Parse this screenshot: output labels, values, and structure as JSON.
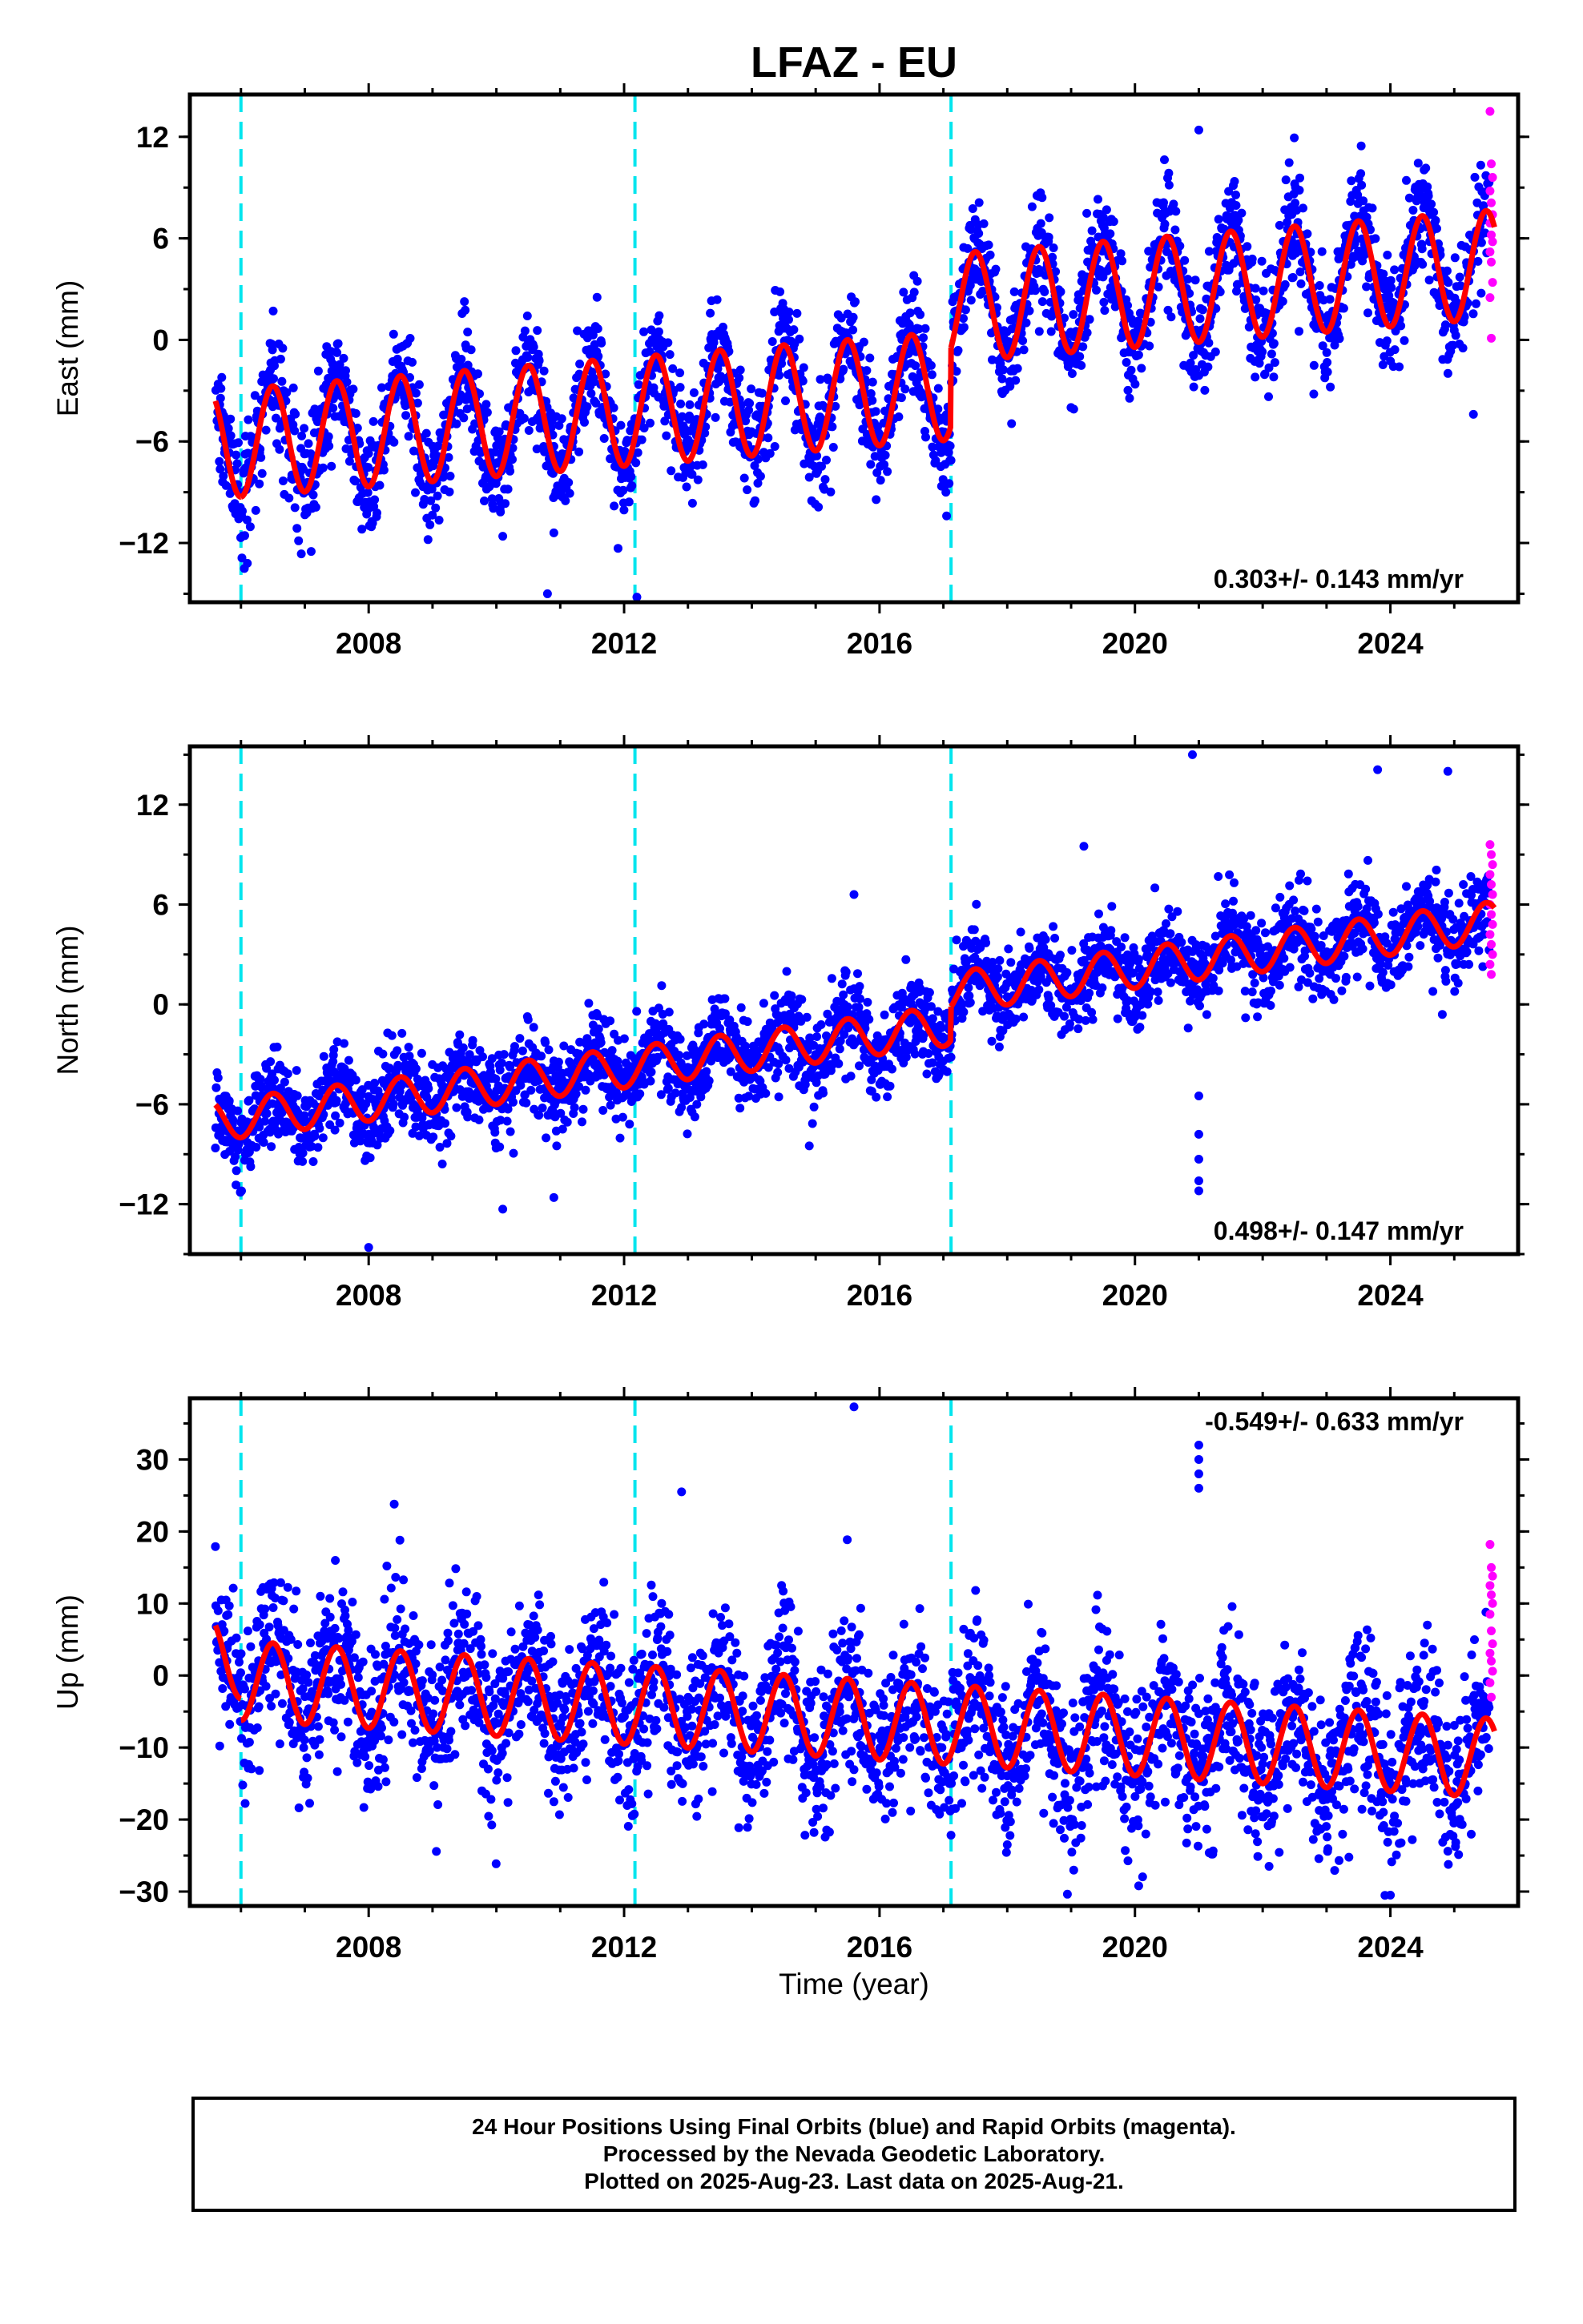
{
  "title": "LFAZ - EU",
  "xlabel": "Time (year)",
  "footer": {
    "line1": "24 Hour Positions Using Final Orbits (blue) and Rapid Orbits (magenta).",
    "line2": "Processed by the Nevada Geodetic Laboratory.",
    "line3": "Plotted on 2025-Aug-23. Last data on 2025-Aug-21."
  },
  "colors": {
    "final": "#0000ff",
    "rapid": "#ff00ff",
    "model": "#ff0000",
    "steps": "#00e5ee"
  },
  "chart_data": [
    {
      "type": "scatter",
      "component": "East",
      "ylabel": "East (mm)",
      "xlim": [
        2005.2,
        2026.0
      ],
      "ylim": [
        -15.5,
        14.5
      ],
      "xticks": [
        2008,
        2012,
        2016,
        2020,
        2024
      ],
      "yticks": [
        -12,
        -6,
        0,
        6,
        12
      ],
      "grid": false,
      "step_epochs": [
        2006.0,
        2012.17,
        2017.12
      ],
      "rate_label": "0.303+/- 0.143 mm/yr",
      "rate_label_position": "bottom-right",
      "model": {
        "start_year": 2005.6,
        "end_year": 2025.63,
        "rate": 0.303,
        "offset_at_start": -6.2,
        "annual_amplitude": 3.2,
        "steps": [
          {
            "year": 2006.0,
            "offset": 0.0
          },
          {
            "year": 2012.17,
            "offset": 0.0
          },
          {
            "year": 2017.12,
            "offset": 4.6
          }
        ]
      },
      "scatter_sigma": 1.6,
      "outliers": [
        [
          2021.0,
          12.4
        ],
        [
          2010.8,
          -15.0
        ],
        [
          2012.2,
          -15.2
        ],
        [
          2006.1,
          -13.2
        ],
        [
          2007.1,
          -12.5
        ],
        [
          2010.9,
          -11.4
        ],
        [
          2025.3,
          -4.4
        ],
        [
          2022.8,
          -3.2
        ],
        [
          2017.05,
          -10.4
        ],
        [
          2010.1,
          -11.6
        ]
      ],
      "rapid_points": [
        13.5,
        10.4,
        9.6,
        8.8,
        8.1,
        7.4,
        6.9,
        6.2,
        5.8,
        5.2,
        4.6,
        3.4,
        2.5,
        0.1
      ]
    },
    {
      "type": "scatter",
      "component": "North",
      "ylabel": "North (mm)",
      "xlim": [
        2005.2,
        2026.0
      ],
      "ylim": [
        -15.0,
        15.5
      ],
      "xticks": [
        2008,
        2012,
        2016,
        2020,
        2024
      ],
      "yticks": [
        -12,
        -6,
        0,
        6,
        12
      ],
      "grid": false,
      "step_epochs": [
        2006.0,
        2012.17,
        2017.12
      ],
      "rate_label": "0.498+/- 0.147 mm/yr",
      "rate_label_position": "bottom-right",
      "model": {
        "start_year": 2005.6,
        "end_year": 2025.63,
        "rate": 0.498,
        "offset_at_start": -7.0,
        "annual_amplitude": 1.2,
        "steps": [
          {
            "year": 2006.0,
            "offset": 0.0
          },
          {
            "year": 2012.17,
            "offset": 0.0
          },
          {
            "year": 2017.12,
            "offset": 2.0
          }
        ]
      },
      "scatter_sigma": 1.3,
      "outliers": [
        [
          2020.9,
          15.0
        ],
        [
          2021.0,
          -5.5
        ],
        [
          2021.0,
          -7.8
        ],
        [
          2021.0,
          -9.3
        ],
        [
          2021.0,
          -10.6
        ],
        [
          2021.0,
          -11.2
        ],
        [
          2008.0,
          -14.6
        ],
        [
          2010.1,
          -12.3
        ],
        [
          2010.9,
          -11.6
        ],
        [
          2015.6,
          6.6
        ],
        [
          2014.9,
          -8.5
        ],
        [
          2023.8,
          14.1
        ],
        [
          2024.9,
          14.0
        ],
        [
          2019.2,
          9.5
        ]
      ],
      "rapid_points": [
        9.6,
        9.0,
        8.4,
        7.8,
        7.2,
        6.6,
        6.0,
        5.4,
        4.8,
        4.2,
        3.6,
        3.0,
        2.4,
        1.8
      ]
    },
    {
      "type": "scatter",
      "component": "Up",
      "ylabel": "Up (mm)",
      "xlim": [
        2005.2,
        2026.0
      ],
      "ylim": [
        -32.0,
        38.5
      ],
      "xticks": [
        2008,
        2012,
        2016,
        2020,
        2024
      ],
      "yticks": [
        -30,
        -20,
        -10,
        0,
        10,
        20,
        30
      ],
      "grid": false,
      "step_epochs": [
        2006.0,
        2012.17,
        2017.12
      ],
      "rate_label": "-0.549+/- 0.633 mm/yr",
      "rate_label_position": "top-right",
      "model": {
        "start_year": 2005.6,
        "end_year": 2025.63,
        "rate": -0.549,
        "offset_at_start": 2.5,
        "annual_amplitude": 5.5,
        "steps": [
          {
            "year": 2006.0,
            "offset": -3.0
          },
          {
            "year": 2012.17,
            "offset": 0.0
          },
          {
            "year": 2017.12,
            "offset": 0.0
          }
        ]
      },
      "scatter_sigma": 5.5,
      "outliers": [
        [
          2015.6,
          37.3
        ],
        [
          2021.0,
          32.0
        ],
        [
          2021.0,
          30.0
        ],
        [
          2021.0,
          28.0
        ],
        [
          2021.0,
          26.0
        ],
        [
          2012.9,
          25.5
        ],
        [
          2008.4,
          23.8
        ],
        [
          2024.0,
          -30.5
        ],
        [
          2022.1,
          -26.5
        ],
        [
          2018.0,
          -23.5
        ],
        [
          2021.2,
          -24.8
        ],
        [
          2024.9,
          -24.4
        ]
      ],
      "rapid_points": [
        18.2,
        15.0,
        13.8,
        12.5,
        11.2,
        10.0,
        8.5,
        6.2,
        4.4,
        3.1,
        2.0,
        0.6,
        -1.0,
        -3.0
      ]
    }
  ]
}
